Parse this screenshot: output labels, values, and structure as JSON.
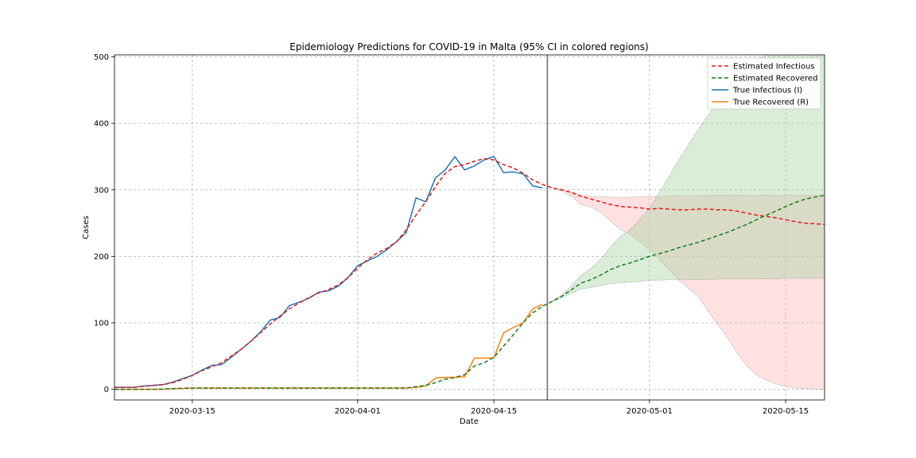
{
  "chart_data": {
    "type": "line",
    "title": "Epidemiology Predictions for COVID-19 in Malta (95% CI in colored regions)",
    "xlabel": "Date",
    "ylabel": "Cases",
    "x_start": "2020-03-07",
    "x_end": "2020-05-19",
    "xlim_day": [
      0,
      73
    ],
    "ylim": [
      -16,
      503
    ],
    "x_ticks": [
      {
        "day": 8,
        "label": "2020-03-15"
      },
      {
        "day": 25,
        "label": "2020-04-01"
      },
      {
        "day": 39,
        "label": "2020-04-15"
      },
      {
        "day": 55,
        "label": "2020-05-01"
      },
      {
        "day": 69,
        "label": "2020-05-15"
      }
    ],
    "y_ticks": [
      0,
      100,
      200,
      300,
      400,
      500
    ],
    "grid": true,
    "legend_position": "top-right",
    "vline_day": 44.5,
    "colors": {
      "est_infectious": "#e41a1c",
      "est_recovered": "#1a7f1a",
      "true_infectious": "#1f77b4",
      "true_recovered": "#ff7f0e",
      "ci_infectious": "#ffb3b3",
      "ci_recovered": "#9fd29f",
      "vline": "#707070"
    },
    "series": [
      {
        "name": "Estimated Infectious",
        "style": "dashed",
        "color": "est_infectious",
        "points": [
          [
            0,
            3
          ],
          [
            2,
            3
          ],
          [
            4,
            6
          ],
          [
            5,
            7
          ],
          [
            6,
            10
          ],
          [
            7,
            15
          ],
          [
            8,
            21
          ],
          [
            9,
            28
          ],
          [
            10,
            34
          ],
          [
            11,
            40
          ],
          [
            12,
            50
          ],
          [
            13,
            60
          ],
          [
            14,
            72
          ],
          [
            15,
            85
          ],
          [
            16,
            98
          ],
          [
            17,
            110
          ],
          [
            18,
            121
          ],
          [
            19,
            130
          ],
          [
            20,
            138
          ],
          [
            21,
            145
          ],
          [
            22,
            150
          ],
          [
            23,
            157
          ],
          [
            24,
            168
          ],
          [
            25,
            182
          ],
          [
            26,
            195
          ],
          [
            27,
            205
          ],
          [
            28,
            212
          ],
          [
            29,
            222
          ],
          [
            30,
            240
          ],
          [
            31,
            262
          ],
          [
            32,
            282
          ],
          [
            33,
            305
          ],
          [
            34,
            325
          ],
          [
            35,
            335
          ],
          [
            36,
            338
          ],
          [
            37,
            343
          ],
          [
            38,
            347
          ],
          [
            39,
            345
          ],
          [
            40,
            338
          ],
          [
            41,
            333
          ],
          [
            42,
            325
          ],
          [
            43,
            315
          ],
          [
            44,
            308
          ],
          [
            45,
            303
          ],
          [
            46,
            300
          ],
          [
            47,
            296
          ],
          [
            48,
            290
          ],
          [
            49,
            286
          ],
          [
            50,
            282
          ],
          [
            51,
            278
          ],
          [
            52,
            275
          ],
          [
            53,
            274
          ],
          [
            54,
            273
          ],
          [
            55,
            271
          ],
          [
            56,
            272
          ],
          [
            57,
            271
          ],
          [
            58,
            270
          ],
          [
            59,
            270
          ],
          [
            60,
            271
          ],
          [
            61,
            271
          ],
          [
            62,
            270
          ],
          [
            63,
            270
          ],
          [
            64,
            268
          ],
          [
            65,
            265
          ],
          [
            66,
            262
          ],
          [
            67,
            260
          ],
          [
            68,
            258
          ],
          [
            69,
            255
          ],
          [
            70,
            252
          ],
          [
            71,
            250
          ],
          [
            72,
            249
          ],
          [
            73,
            248
          ]
        ]
      },
      {
        "name": "Estimated Recovered",
        "style": "dashed",
        "color": "est_recovered",
        "points": [
          [
            0,
            0
          ],
          [
            4,
            0
          ],
          [
            6,
            1
          ],
          [
            8,
            2
          ],
          [
            10,
            2
          ],
          [
            30,
            2
          ],
          [
            31,
            4
          ],
          [
            32,
            6
          ],
          [
            33,
            10
          ],
          [
            34,
            15
          ],
          [
            35,
            18
          ],
          [
            36,
            22
          ],
          [
            37,
            35
          ],
          [
            38,
            40
          ],
          [
            39,
            48
          ],
          [
            40,
            65
          ],
          [
            41,
            82
          ],
          [
            42,
            100
          ],
          [
            43,
            115
          ],
          [
            44,
            125
          ],
          [
            45,
            132
          ],
          [
            46,
            140
          ],
          [
            47,
            150
          ],
          [
            48,
            160
          ],
          [
            49,
            165
          ],
          [
            50,
            172
          ],
          [
            51,
            180
          ],
          [
            52,
            186
          ],
          [
            53,
            190
          ],
          [
            54,
            195
          ],
          [
            55,
            200
          ],
          [
            56,
            204
          ],
          [
            57,
            208
          ],
          [
            58,
            213
          ],
          [
            59,
            217
          ],
          [
            60,
            221
          ],
          [
            61,
            226
          ],
          [
            62,
            231
          ],
          [
            63,
            236
          ],
          [
            64,
            242
          ],
          [
            65,
            248
          ],
          [
            66,
            255
          ],
          [
            67,
            262
          ],
          [
            68,
            268
          ],
          [
            69,
            275
          ],
          [
            70,
            281
          ],
          [
            71,
            286
          ],
          [
            72,
            289
          ],
          [
            73,
            292
          ]
        ]
      },
      {
        "name": "True Infectious (I)",
        "style": "solid",
        "color": "true_infectious",
        "points": [
          [
            0,
            3
          ],
          [
            2,
            3
          ],
          [
            3,
            5
          ],
          [
            4,
            6
          ],
          [
            5,
            7
          ],
          [
            6,
            11
          ],
          [
            7,
            16
          ],
          [
            8,
            21
          ],
          [
            9,
            29
          ],
          [
            10,
            36
          ],
          [
            11,
            37
          ],
          [
            12,
            48
          ],
          [
            13,
            60
          ],
          [
            14,
            72
          ],
          [
            15,
            86
          ],
          [
            16,
            104
          ],
          [
            17,
            108
          ],
          [
            18,
            126
          ],
          [
            19,
            131
          ],
          [
            20,
            137
          ],
          [
            21,
            146
          ],
          [
            22,
            148
          ],
          [
            23,
            155
          ],
          [
            24,
            168
          ],
          [
            25,
            186
          ],
          [
            26,
            193
          ],
          [
            27,
            200
          ],
          [
            28,
            210
          ],
          [
            29,
            222
          ],
          [
            30,
            236
          ],
          [
            31,
            288
          ],
          [
            32,
            282
          ],
          [
            33,
            318
          ],
          [
            34,
            330
          ],
          [
            35,
            350
          ],
          [
            36,
            330
          ],
          [
            37,
            336
          ],
          [
            38,
            345
          ],
          [
            39,
            350
          ],
          [
            40,
            326
          ],
          [
            41,
            327
          ],
          [
            42,
            324
          ],
          [
            43,
            306
          ],
          [
            44,
            303
          ]
        ]
      },
      {
        "name": "True Recovered (R)",
        "style": "solid",
        "color": "true_recovered",
        "points": [
          [
            0,
            0
          ],
          [
            5,
            0
          ],
          [
            6,
            1
          ],
          [
            8,
            2
          ],
          [
            30,
            2
          ],
          [
            31,
            3
          ],
          [
            32,
            5
          ],
          [
            33,
            17
          ],
          [
            34,
            18
          ],
          [
            35,
            18
          ],
          [
            36,
            19
          ],
          [
            37,
            47
          ],
          [
            38,
            47
          ],
          [
            39,
            47
          ],
          [
            40,
            85
          ],
          [
            41,
            93
          ],
          [
            42,
            100
          ],
          [
            43,
            121
          ],
          [
            44,
            128
          ]
        ]
      }
    ],
    "ci_bands": [
      {
        "series": "Estimated Infectious",
        "color": "ci_infectious",
        "upper": [
          [
            44,
            308
          ],
          [
            45,
            303
          ],
          [
            46,
            300
          ],
          [
            47,
            297
          ],
          [
            48,
            292
          ],
          [
            49,
            290
          ],
          [
            50,
            290
          ],
          [
            51,
            289
          ],
          [
            52,
            289
          ],
          [
            53,
            289
          ],
          [
            54,
            290
          ],
          [
            55,
            290
          ],
          [
            56,
            290
          ],
          [
            57,
            291
          ],
          [
            58,
            291
          ],
          [
            59,
            291
          ],
          [
            60,
            291
          ],
          [
            61,
            292
          ],
          [
            62,
            292
          ],
          [
            63,
            292
          ],
          [
            64,
            292
          ],
          [
            65,
            292
          ],
          [
            66,
            292
          ],
          [
            67,
            292
          ],
          [
            68,
            292
          ],
          [
            69,
            292
          ],
          [
            70,
            292
          ],
          [
            71,
            292
          ],
          [
            72,
            292
          ],
          [
            73,
            292
          ]
        ],
        "lower": [
          [
            44,
            308
          ],
          [
            45,
            303
          ],
          [
            46,
            298
          ],
          [
            47,
            290
          ],
          [
            48,
            278
          ],
          [
            49,
            274
          ],
          [
            50,
            266
          ],
          [
            51,
            253
          ],
          [
            52,
            240
          ],
          [
            53,
            233
          ],
          [
            54,
            222
          ],
          [
            55,
            210
          ],
          [
            56,
            196
          ],
          [
            57,
            180
          ],
          [
            58,
            165
          ],
          [
            59,
            152
          ],
          [
            60,
            140
          ],
          [
            61,
            118
          ],
          [
            62,
            98
          ],
          [
            63,
            78
          ],
          [
            64,
            55
          ],
          [
            65,
            35
          ],
          [
            66,
            22
          ],
          [
            67,
            14
          ],
          [
            68,
            8
          ],
          [
            69,
            4
          ],
          [
            70,
            2
          ],
          [
            71,
            1
          ],
          [
            72,
            0
          ],
          [
            73,
            0
          ]
        ]
      },
      {
        "series": "Estimated Recovered",
        "color": "ci_recovered",
        "upper": [
          [
            44,
            125
          ],
          [
            45,
            133
          ],
          [
            46,
            142
          ],
          [
            47,
            156
          ],
          [
            48,
            172
          ],
          [
            49,
            182
          ],
          [
            50,
            196
          ],
          [
            51,
            214
          ],
          [
            52,
            230
          ],
          [
            53,
            240
          ],
          [
            54,
            255
          ],
          [
            55,
            272
          ],
          [
            56,
            296
          ],
          [
            57,
            320
          ],
          [
            58,
            345
          ],
          [
            59,
            368
          ],
          [
            60,
            390
          ],
          [
            61,
            412
          ],
          [
            62,
            432
          ],
          [
            63,
            452
          ],
          [
            64,
            470
          ],
          [
            65,
            486
          ],
          [
            66,
            496
          ],
          [
            67,
            503
          ],
          [
            73,
            503
          ]
        ],
        "lower": [
          [
            44,
            125
          ],
          [
            45,
            132
          ],
          [
            46,
            138
          ],
          [
            47,
            145
          ],
          [
            48,
            151
          ],
          [
            49,
            153
          ],
          [
            50,
            156
          ],
          [
            51,
            159
          ],
          [
            52,
            160
          ],
          [
            53,
            161
          ],
          [
            54,
            162
          ],
          [
            55,
            164
          ],
          [
            56,
            164
          ],
          [
            57,
            165
          ],
          [
            58,
            165
          ],
          [
            59,
            165
          ],
          [
            60,
            165
          ],
          [
            61,
            165
          ],
          [
            62,
            166
          ],
          [
            63,
            166
          ],
          [
            64,
            166
          ],
          [
            65,
            166
          ],
          [
            66,
            166
          ],
          [
            67,
            166
          ],
          [
            68,
            166
          ],
          [
            69,
            167
          ],
          [
            70,
            167
          ],
          [
            71,
            167
          ],
          [
            72,
            167
          ],
          [
            73,
            167
          ]
        ]
      }
    ]
  }
}
